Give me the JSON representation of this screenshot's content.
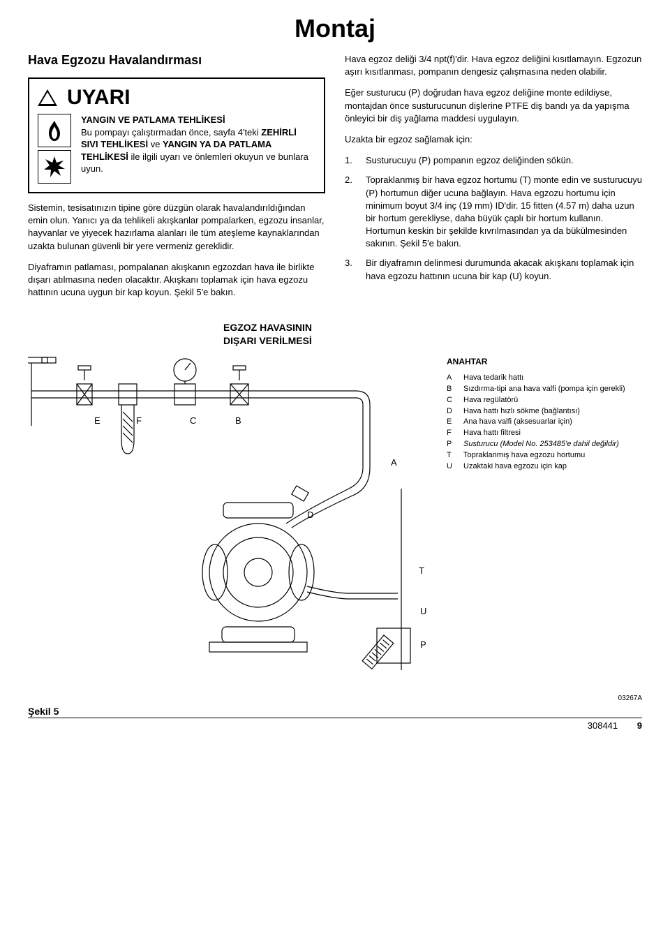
{
  "page_title": "Montaj",
  "left": {
    "heading": "Hava Egzozu Havalandırması",
    "warning": {
      "word": "UYARI",
      "title": "YANGIN VE PATLAMA TEHLİKESİ",
      "text_parts": [
        "Bu pompayı çalıştırmadan önce, sayfa 4'teki ",
        "ZEHİRLİ SIVI TEHLİKESİ",
        " ve ",
        "YANGIN YA DA PATLAMA TEHLİKESİ",
        " ile ilgili uyarı ve önlemleri okuyun ve bunlara uyun."
      ],
      "icon_fire_name": "fire-hazard-icon",
      "icon_explosion_name": "explosion-hazard-icon"
    },
    "p1": "Sistemin, tesisatınızın tipine göre düzgün olarak havalandırıldığından emin olun. Yanıcı ya da tehlikeli akışkanlar pompalarken, egzozu insanlar, hayvanlar ve yiyecek hazırlama alanları ile tüm ateşleme kaynaklarından uzakta bulunan güvenli bir yere vermeniz gereklidir.",
    "p2": "Diyaframın patlaması, pompalanan akışkanın egzozdan hava ile birlikte dışarı atılmasına neden olacaktır. Akışkanı toplamak için hava egzozu hattının ucuna uygun bir kap koyun. Şekil 5'e bakın."
  },
  "right": {
    "p1": "Hava egzoz deliği 3/4 npt(f)'dir. Hava egzoz deliğini kısıtlamayın. Egzozun aşırı kısıtlanması, pompanın dengesiz çalışmasına neden olabilir.",
    "p2": "Eğer susturucu (P) doğrudan hava egzoz deliğine monte edildiyse, montajdan önce susturucunun dişlerine PTFE diş bandı ya da yapışma önleyici bir diş yağlama maddesi uygulayın.",
    "p3": "Uzakta bir egzoz sağlamak için:",
    "steps": [
      "Susturucuyu (P) pompanın egzoz deliğinden sökün.",
      "Topraklanmış bir hava egzoz hortumu (T) monte edin ve susturucuyu (P) hortumun diğer ucuna bağlayın. Hava egzozu hortumu için minimum boyut 3/4 inç (19 mm) ID'dir. 15 fitten (4.57 m) daha uzun bir hortum gerekliyse, daha büyük çaplı bir hortum kullanın. Hortumun keskin bir şekilde kıvrılmasından ya da bükülmesinden sakının. Şekil 5'e bakın.",
      "Bir diyaframın delinmesi durumunda akacak akışkanı toplamak için hava egzozu hattının ucuna bir kap (U) koyun."
    ]
  },
  "diagram": {
    "title": "EGZOZ HAVASININ\nDIŞARI VERİLMESİ",
    "callouts": {
      "E": "E",
      "F": "F",
      "C": "C",
      "B": "B",
      "A": "A",
      "D": "D",
      "T": "T",
      "U": "U",
      "P": "P"
    },
    "key_title": "ANAHTAR",
    "key": [
      {
        "k": "A",
        "v": "Hava tedarik hattı"
      },
      {
        "k": "B",
        "v": "Sızdırma-tipi ana hava valfi (pompa için gerekli)"
      },
      {
        "k": "C",
        "v": "Hava regülatörü"
      },
      {
        "k": "D",
        "v": "Hava hattı hızlı sökme (bağlantısı)"
      },
      {
        "k": "E",
        "v": "Ana hava valfi (aksesuarlar için)"
      },
      {
        "k": "F",
        "v": "Hava hattı filtresi"
      },
      {
        "k": "P",
        "v": "Susturucu (Model No. 253485'e dahil değildir)",
        "italic": true
      },
      {
        "k": "T",
        "v": "Topraklanmış hava egzozu hortumu"
      },
      {
        "k": "U",
        "v": "Uzaktaki hava egzozu için kap"
      }
    ],
    "stroke_color": "#000000",
    "line_width": 1.2
  },
  "footer": {
    "fig_label": "Şekil 5",
    "fig_code": "03267A",
    "doc_number": "308441",
    "page_number": "9"
  }
}
